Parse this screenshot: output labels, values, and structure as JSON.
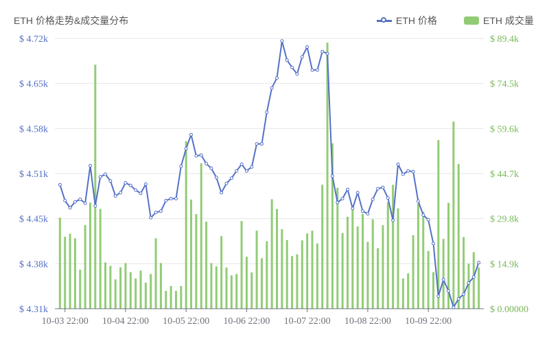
{
  "chart_data": {
    "type": "bar+line",
    "title": "ETH 价格走势&成交量分布",
    "legend": [
      {
        "name": "ETH 价格",
        "type": "line",
        "color": "#5470c6"
      },
      {
        "name": "ETH 成交量",
        "type": "bar",
        "color": "#91cc75"
      }
    ],
    "legend_position": "top-right",
    "x_tick_labels": [
      "10-03 22:00",
      "10-04 22:00",
      "10-05 22:00",
      "10-06 22:00",
      "10-07 22:00",
      "10-08 22:00",
      "10-09 22:00"
    ],
    "x_tick_hours": [
      2,
      26,
      50,
      74,
      98,
      122,
      146
    ],
    "x_range_hours": [
      -2,
      168
    ],
    "x_interval_hours": 2,
    "left_axis": {
      "name": "ETH 价格",
      "ticks": [
        "$ 4.31k",
        "$ 4.38k",
        "$ 4.45k",
        "$ 4.51k",
        "$ 4.58k",
        "$ 4.65k",
        "$ 4.72k"
      ],
      "range": [
        4310,
        4720
      ],
      "color": "#5470c6"
    },
    "right_axis": {
      "name": "ETH 成交量",
      "ticks": [
        "$ 0.00000",
        "$ 14.9k",
        "$ 29.8k",
        "$ 44.7k",
        "$ 59.6k",
        "$ 74.5k",
        "$ 89.4k"
      ],
      "range": [
        0,
        89400
      ],
      "color": "#7ab85b"
    },
    "grid": true,
    "series": [
      {
        "name": "ETH 价格",
        "type": "line",
        "axis": "left",
        "color": "#5470c6",
        "values": [
          4498,
          4474,
          4463,
          4472,
          4476,
          4470,
          4527,
          4466,
          4510,
          4514,
          4504,
          4481,
          4486,
          4501,
          4497,
          4490,
          4485,
          4499,
          4448,
          4456,
          4458,
          4474,
          4477,
          4477,
          4526,
          4553,
          4574,
          4542,
          4543,
          4530,
          4523,
          4509,
          4486,
          4500,
          4508,
          4519,
          4529,
          4519,
          4525,
          4560,
          4560,
          4608,
          4645,
          4660,
          4716,
          4687,
          4676,
          4666,
          4692,
          4707,
          4672,
          4672,
          4700,
          4697,
          4511,
          4471,
          4477,
          4491,
          4462,
          4486,
          4458,
          4454,
          4476,
          4492,
          4494,
          4478,
          4444,
          4529,
          4514,
          4519,
          4518,
          4473,
          4452,
          4445,
          4409,
          4329,
          4354,
          4337,
          4312,
          4325,
          4332,
          4349,
          4358,
          4380
        ]
      },
      {
        "name": "ETH 成交量",
        "type": "bar",
        "axis": "right",
        "color": "#91cc75",
        "values": [
          30100,
          23800,
          24800,
          23300,
          12900,
          27700,
          35100,
          80700,
          33000,
          15300,
          14200,
          9700,
          13700,
          15100,
          12100,
          10000,
          12600,
          8600,
          11500,
          23300,
          15100,
          5900,
          7500,
          5900,
          7500,
          55400,
          36100,
          31300,
          48100,
          28800,
          15100,
          14000,
          24000,
          13600,
          11000,
          11500,
          29000,
          17200,
          12000,
          25800,
          16700,
          22300,
          36200,
          33000,
          26300,
          22700,
          17400,
          18000,
          22600,
          24900,
          25800,
          21600,
          41000,
          88000,
          54700,
          40000,
          25000,
          30400,
          33500,
          27200,
          31400,
          22100,
          29600,
          20000,
          27600,
          35200,
          41000,
          33200,
          10000,
          11700,
          24300,
          34800,
          32100,
          19100,
          12100,
          55800,
          23100,
          35000,
          61900,
          47900,
          23700,
          14900,
          18700,
          13600
        ]
      }
    ]
  }
}
